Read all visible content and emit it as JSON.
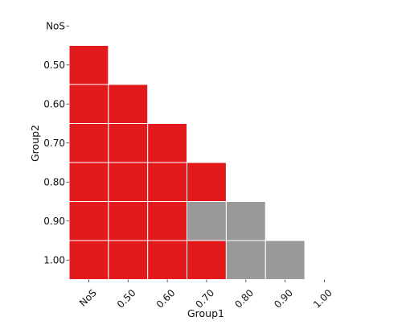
{
  "chart_data": {
    "type": "heatmap",
    "xlabel": "Group1",
    "ylabel": "Group2",
    "x_categories": [
      "NoS",
      "0.50",
      "0.60",
      "0.70",
      "0.80",
      "0.90",
      "1.00"
    ],
    "y_categories": [
      "NoS",
      "0.50",
      "0.60",
      "0.70",
      "0.80",
      "0.90",
      "1.00"
    ],
    "lower_triangle_only": true,
    "legend": "none",
    "grid": false,
    "colors": {
      "significant": "#e31a1c",
      "not_significant": "#999999",
      "cell_border": "#ffffff"
    },
    "cells": [
      {
        "x": "NoS",
        "y": "0.50",
        "status": "significant"
      },
      {
        "x": "NoS",
        "y": "0.60",
        "status": "significant"
      },
      {
        "x": "0.50",
        "y": "0.60",
        "status": "significant"
      },
      {
        "x": "NoS",
        "y": "0.70",
        "status": "significant"
      },
      {
        "x": "0.50",
        "y": "0.70",
        "status": "significant"
      },
      {
        "x": "0.60",
        "y": "0.70",
        "status": "significant"
      },
      {
        "x": "NoS",
        "y": "0.80",
        "status": "significant"
      },
      {
        "x": "0.50",
        "y": "0.80",
        "status": "significant"
      },
      {
        "x": "0.60",
        "y": "0.80",
        "status": "significant"
      },
      {
        "x": "0.70",
        "y": "0.80",
        "status": "significant"
      },
      {
        "x": "NoS",
        "y": "0.90",
        "status": "significant"
      },
      {
        "x": "0.50",
        "y": "0.90",
        "status": "significant"
      },
      {
        "x": "0.60",
        "y": "0.90",
        "status": "significant"
      },
      {
        "x": "0.70",
        "y": "0.90",
        "status": "not_significant"
      },
      {
        "x": "0.80",
        "y": "0.90",
        "status": "not_significant"
      },
      {
        "x": "NoS",
        "y": "1.00",
        "status": "significant"
      },
      {
        "x": "0.50",
        "y": "1.00",
        "status": "significant"
      },
      {
        "x": "0.60",
        "y": "1.00",
        "status": "significant"
      },
      {
        "x": "0.70",
        "y": "1.00",
        "status": "significant"
      },
      {
        "x": "0.80",
        "y": "1.00",
        "status": "not_significant"
      },
      {
        "x": "0.90",
        "y": "1.00",
        "status": "not_significant"
      }
    ]
  }
}
